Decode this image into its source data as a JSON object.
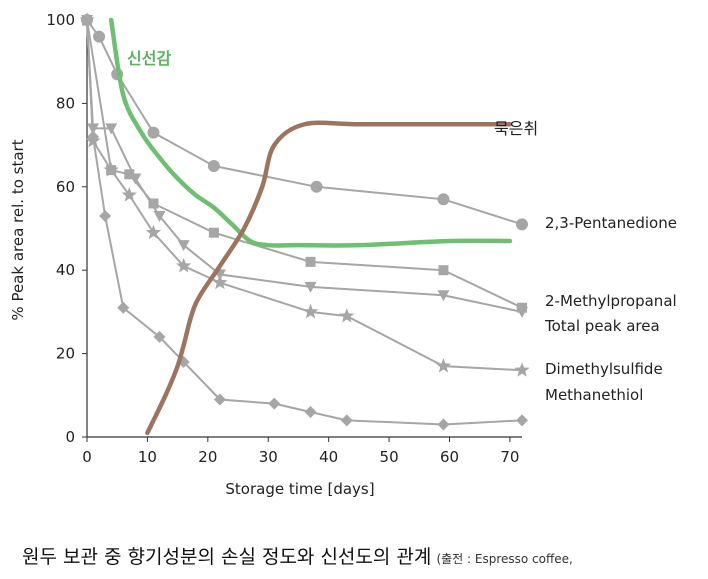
{
  "chart_data": {
    "type": "line",
    "xlabel": "Storage time [days]",
    "ylabel": "% Peak area rel. to start",
    "xlim": [
      0,
      72
    ],
    "ylim": [
      0,
      100
    ],
    "xticks": [
      0,
      10,
      20,
      30,
      40,
      50,
      60,
      70
    ],
    "yticks": [
      0,
      20,
      40,
      60,
      80,
      100
    ],
    "grid": false,
    "series": [
      {
        "name": "2,3-Pentanedione",
        "marker": "circle",
        "color": "#a6a6a6",
        "x": [
          0,
          2,
          5,
          11,
          21,
          38,
          59,
          72
        ],
        "y": [
          100,
          96,
          87,
          73,
          65,
          60,
          57,
          51
        ]
      },
      {
        "name": "2-Methylpropanal",
        "marker": "square",
        "color": "#a6a6a6",
        "x": [
          0,
          4,
          7,
          11,
          21,
          37,
          59,
          72
        ],
        "y": [
          100,
          64,
          63,
          56,
          49,
          42,
          40,
          31
        ]
      },
      {
        "name": "Total peak area",
        "marker": "triangle-down",
        "color": "#a6a6a6",
        "x": [
          0,
          1,
          4,
          8,
          12,
          16,
          22,
          37,
          59,
          72
        ],
        "y": [
          100,
          74,
          74,
          62,
          53,
          46,
          39,
          36,
          34,
          30
        ]
      },
      {
        "name": "Dimethylsulfide",
        "marker": "star",
        "color": "#a6a6a6",
        "x": [
          0,
          1,
          4,
          7,
          11,
          16,
          22,
          37,
          43,
          59,
          72
        ],
        "y": [
          100,
          71,
          64,
          58,
          49,
          41,
          37,
          30,
          29,
          17,
          16
        ]
      },
      {
        "name": "Methanethiol",
        "marker": "diamond",
        "color": "#a6a6a6",
        "x": [
          0,
          1,
          3,
          6,
          12,
          16,
          22,
          31,
          37,
          43,
          59,
          72
        ],
        "y": [
          100,
          72,
          53,
          31,
          24,
          18,
          9,
          8,
          6,
          4,
          3,
          4
        ]
      },
      {
        "name": "신선감",
        "color": "#6fbf73",
        "x": [
          4,
          6,
          9,
          12,
          15,
          18,
          21,
          24,
          27,
          30,
          35,
          45,
          60,
          70
        ],
        "y": [
          100,
          82,
          73,
          67,
          62,
          58,
          55,
          51,
          47,
          46,
          46,
          46,
          47,
          47
        ]
      },
      {
        "name": "묵은취",
        "color": "#9c7561",
        "x": [
          10,
          13,
          15,
          16,
          18,
          22,
          26,
          29,
          31,
          36,
          45,
          60,
          70
        ],
        "y": [
          1,
          10,
          17,
          22,
          32,
          41,
          50,
          60,
          70,
          75,
          75,
          75,
          75
        ]
      }
    ]
  },
  "caption": {
    "title": "원두 보관 중 향기성분의 손실 정도와 신선도의 관계",
    "source": "(출전 : Espresso coffee,"
  }
}
